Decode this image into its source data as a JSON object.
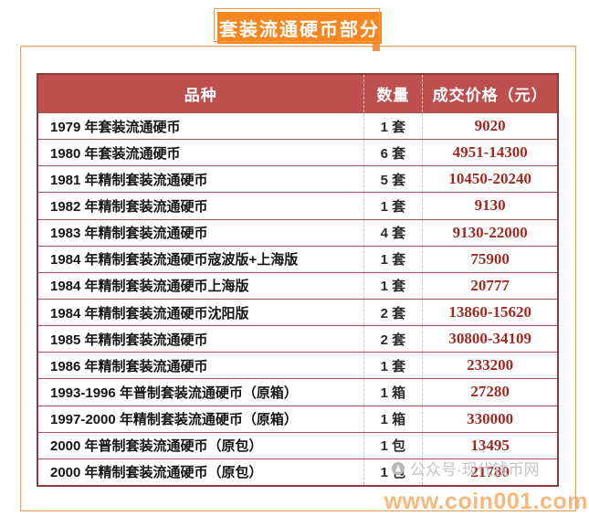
{
  "banner": {
    "title": "套装流通硬币部分"
  },
  "table": {
    "headers": [
      "品种",
      "数量",
      "成交价格（元）"
    ],
    "rows": [
      {
        "product": "1979 年套装流通硬币",
        "qty": "1 套",
        "price": "9020"
      },
      {
        "product": "1980 年套装流通硬币",
        "qty": "6 套",
        "price": "4951-14300"
      },
      {
        "product": "1981 年精制套装流通硬币",
        "qty": "5 套",
        "price": "10450-20240"
      },
      {
        "product": "1982 年精制套装流通硬币",
        "qty": "1 套",
        "price": "9130"
      },
      {
        "product": "1983 年精制套装流通硬币",
        "qty": "4 套",
        "price": "9130-22000"
      },
      {
        "product": "1984 年精制套装流通硬币寇波版+上海版",
        "qty": "1 套",
        "price": "75900"
      },
      {
        "product": "1984 年精制套装流通硬币上海版",
        "qty": "1 套",
        "price": "20777"
      },
      {
        "product": "1984 年精制套装流通硬币沈阳版",
        "qty": "2 套",
        "price": "13860-15620"
      },
      {
        "product": "1985 年精制套装流通硬币",
        "qty": "2 套",
        "price": "30800-34109"
      },
      {
        "product": "1986 年精制套装流通硬币",
        "qty": "1 套",
        "price": "233200"
      },
      {
        "product": "1993-1996 年普制套装流通硬币（原箱）",
        "qty": "1 箱",
        "price": "27280"
      },
      {
        "product": "1997-2000 年精制套装流通硬币（原箱）",
        "qty": "1 箱",
        "price": "330000"
      },
      {
        "product": "2000 年普制套装流通硬币（原包）",
        "qty": "1 包",
        "price": "13495"
      },
      {
        "product": "2000 年精制套装流通硬币（原包）",
        "qty": "1 包",
        "price": "21780"
      }
    ]
  },
  "watermarks": {
    "wechat": "公众号·现代钱币网",
    "site": "www.coin001.com"
  },
  "colors": {
    "header_bg": "#bd4f4f",
    "banner_orange": "#f6861f",
    "price_red": "#9e2b23",
    "frame_border": "#dca76b",
    "table_border": "#8e3a37"
  }
}
